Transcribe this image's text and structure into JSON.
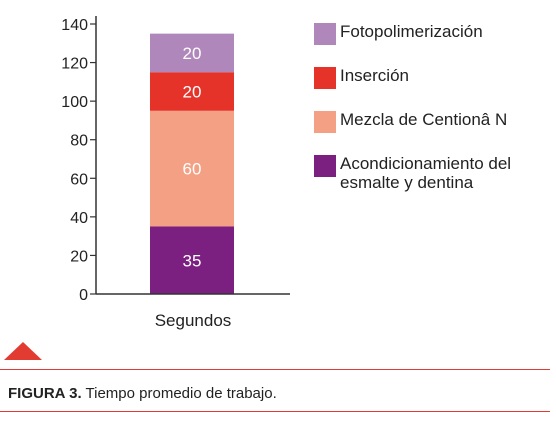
{
  "chart_data": {
    "type": "bar",
    "stacked": true,
    "categories": [
      "Segundos"
    ],
    "series": [
      {
        "name": "Acondicionamiento del esmalte y dentina",
        "values": [
          35
        ],
        "color": "#7b1f80",
        "label": "35"
      },
      {
        "name": "Mezcla de Centionâ N",
        "values": [
          60
        ],
        "color": "#f4a084",
        "label": "60"
      },
      {
        "name": "Inserción",
        "values": [
          20
        ],
        "color": "#e5332a",
        "label": "20"
      },
      {
        "name": "Fotopolimerización",
        "values": [
          20
        ],
        "color": "#b087ba",
        "label": "20"
      }
    ],
    "yticks": [
      "0",
      "20",
      "40",
      "60",
      "80",
      "100",
      "120",
      "140"
    ],
    "ylim": [
      0,
      140
    ],
    "grid": false,
    "legend_position": "right"
  },
  "legend": [
    {
      "label": "Fotopolimerización",
      "color": "#b087ba"
    },
    {
      "label": "Inserción",
      "color": "#e5332a"
    },
    {
      "label": "Mezcla de Centionâ N",
      "color": "#f4a084"
    },
    {
      "label": "Acondicionamiento del esmalte y dentina",
      "color": "#7b1f80"
    }
  ],
  "caption": {
    "figure_label": "FIGURA 3.",
    "text": " Tiempo promedio de trabajo."
  },
  "colors": {
    "accent": "#e23b32"
  }
}
